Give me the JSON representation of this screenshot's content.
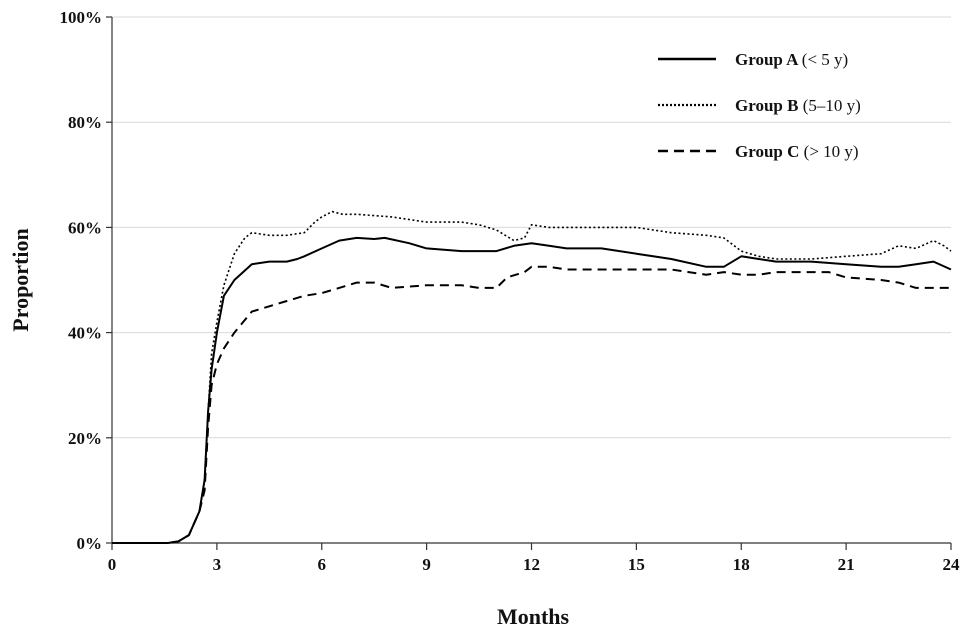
{
  "chart_data": {
    "type": "line",
    "xlabel": "Months",
    "ylabel": "Proportion",
    "xlim": [
      0,
      24
    ],
    "ylim": [
      0,
      100
    ],
    "x_ticks": [
      0,
      3,
      6,
      9,
      12,
      15,
      18,
      21,
      24
    ],
    "x_tick_labels": [
      "0",
      "3",
      "6",
      "9",
      "12",
      "15",
      "18",
      "21",
      "24"
    ],
    "y_ticks": [
      0,
      20,
      40,
      60,
      80,
      100
    ],
    "y_tick_labels": [
      "0%",
      "20%",
      "40%",
      "60%",
      "80%",
      "100%"
    ],
    "grid": "horizontal",
    "legend_position": "top-right",
    "series": [
      {
        "name": "Group A",
        "range_label": "(< 5 y)",
        "line_style": "solid",
        "color": "#000000",
        "x": [
          0,
          1.6,
          1.9,
          2.2,
          2.5,
          2.65,
          2.75,
          2.85,
          3.0,
          3.2,
          3.5,
          4.0,
          4.5,
          5.0,
          5.3,
          5.5,
          6.0,
          6.5,
          7.0,
          7.5,
          7.8,
          8.5,
          9.0,
          10.0,
          11.0,
          11.5,
          12.0,
          12.5,
          13.0,
          14.0,
          15.0,
          16.0,
          17.0,
          17.5,
          18.0,
          18.5,
          19.0,
          20.0,
          21.0,
          22.0,
          22.5,
          23.0,
          23.5,
          24.0
        ],
        "y": [
          0,
          0,
          0.3,
          1.5,
          6,
          12,
          25,
          33,
          40,
          47,
          50,
          53,
          53.5,
          53.5,
          54,
          54.5,
          56,
          57.5,
          58,
          57.8,
          58,
          57,
          56,
          55.5,
          55.5,
          56.5,
          57,
          56.5,
          56,
          56,
          55,
          54,
          52.5,
          52.5,
          54.5,
          54,
          53.5,
          53.5,
          53,
          52.5,
          52.5,
          53,
          53.5,
          52
        ]
      },
      {
        "name": "Group B",
        "range_label": "(5–10 y)",
        "line_style": "dotted",
        "color": "#000000",
        "x": [
          0,
          1.6,
          1.9,
          2.2,
          2.5,
          2.65,
          2.75,
          2.85,
          3.0,
          3.2,
          3.5,
          3.8,
          4.0,
          4.5,
          5.0,
          5.5,
          5.8,
          6.0,
          6.3,
          6.6,
          7.0,
          8.0,
          8.5,
          9.0,
          10.0,
          10.5,
          11.0,
          11.5,
          11.8,
          12.0,
          12.5,
          13.0,
          14.0,
          15.0,
          16.0,
          17.0,
          17.5,
          18.0,
          18.5,
          19.0,
          20.0,
          21.0,
          22.0,
          22.5,
          23.0,
          23.5,
          23.8,
          24.0
        ],
        "y": [
          0,
          0,
          0.3,
          1.5,
          6,
          12,
          25,
          36,
          42,
          49,
          55,
          58,
          59,
          58.5,
          58.5,
          59,
          61,
          62,
          63,
          62.5,
          62.5,
          62,
          61.5,
          61,
          61,
          60.5,
          59.5,
          57.5,
          58,
          60.5,
          60,
          60,
          60,
          60,
          59,
          58.5,
          58,
          55.5,
          54.5,
          54,
          54,
          54.5,
          55,
          56.5,
          56,
          57.5,
          56.5,
          55.5
        ]
      },
      {
        "name": "Group C",
        "range_label": "(> 10 y)",
        "line_style": "dashed",
        "color": "#000000",
        "x": [
          0,
          1.6,
          1.9,
          2.2,
          2.5,
          2.65,
          2.75,
          2.85,
          3.0,
          3.2,
          3.5,
          4.0,
          4.5,
          5.0,
          5.5,
          6.0,
          6.5,
          7.0,
          7.5,
          8.0,
          9.0,
          10.0,
          10.5,
          11.0,
          11.3,
          11.8,
          12.0,
          12.5,
          13.0,
          14.0,
          15.0,
          16.0,
          16.5,
          17.0,
          17.5,
          18.0,
          18.5,
          19.0,
          20.0,
          20.5,
          21.0,
          22.0,
          22.5,
          23.0,
          23.5,
          24.0
        ],
        "y": [
          0,
          0,
          0.3,
          1.5,
          6,
          10,
          22,
          30,
          34,
          37,
          40,
          44,
          45,
          46,
          47,
          47.5,
          48.5,
          49.5,
          49.5,
          48.5,
          49,
          49,
          48.5,
          48.5,
          50.5,
          51.5,
          52.5,
          52.5,
          52,
          52,
          52,
          52,
          51.5,
          51,
          51.5,
          51,
          51,
          51.5,
          51.5,
          51.5,
          50.5,
          50,
          49.5,
          48.5,
          48.5,
          48.5
        ]
      }
    ]
  }
}
